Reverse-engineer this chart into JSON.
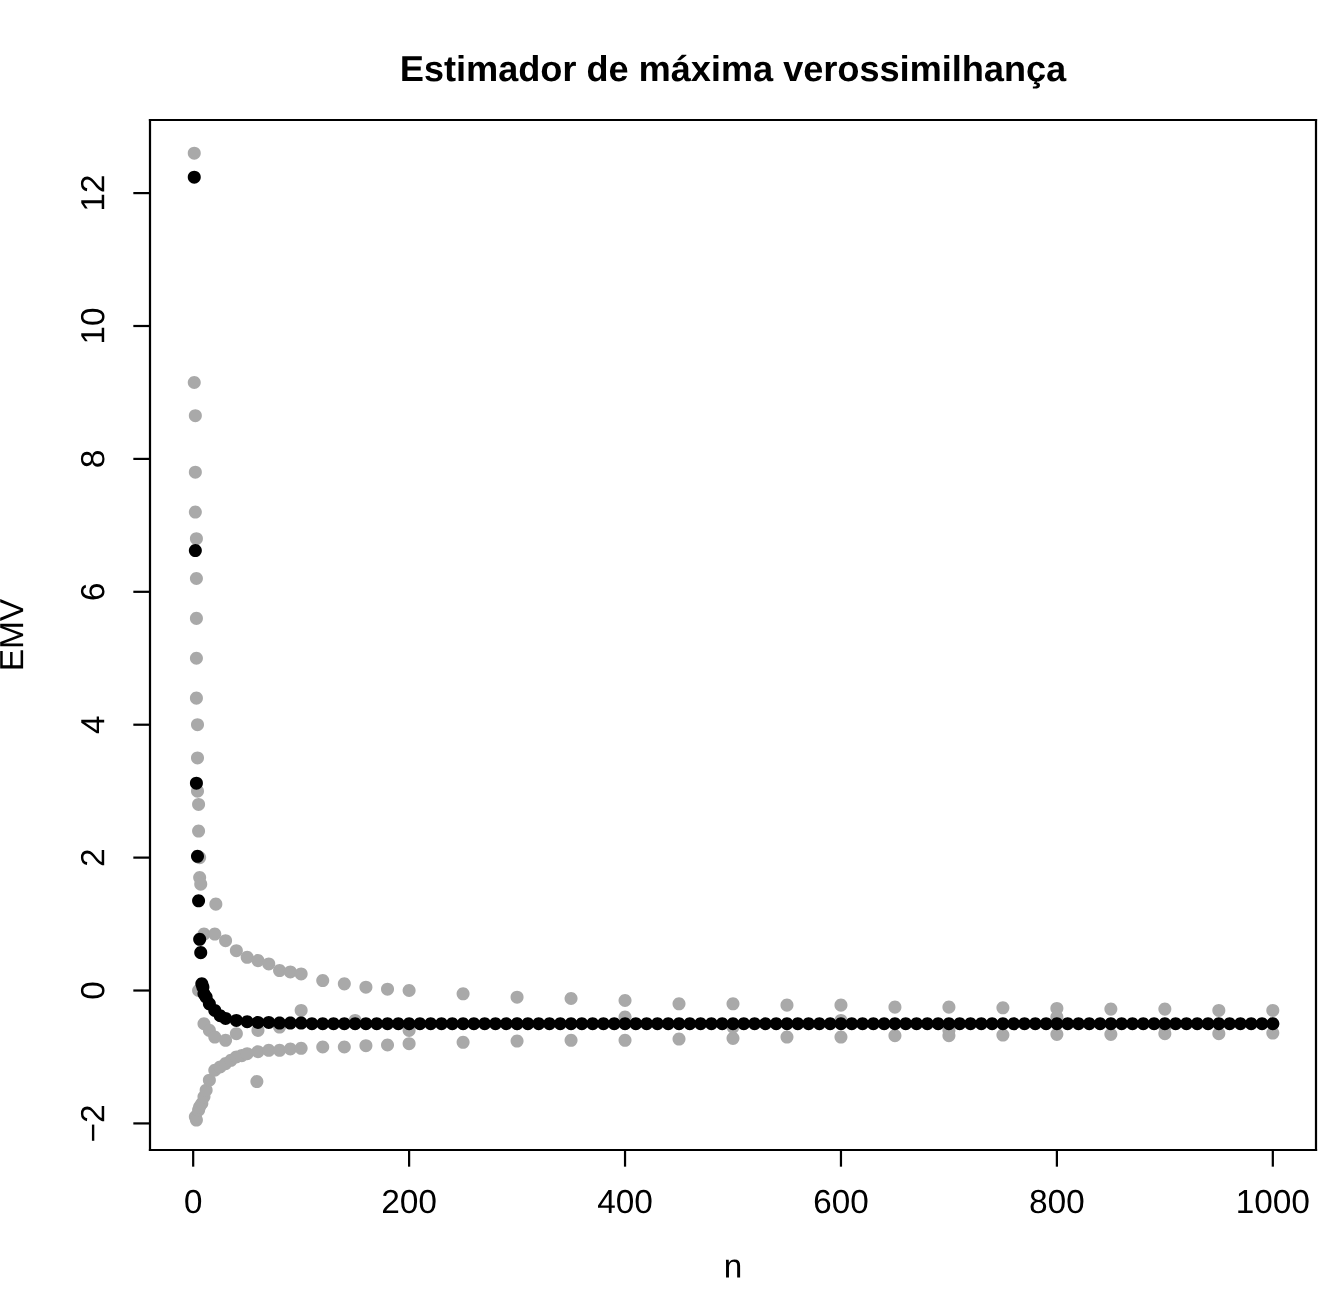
{
  "chart_data": {
    "type": "scatter",
    "title": "Estimador de máxima verossimilhança",
    "xlabel": "n",
    "ylabel": "EMV",
    "xlim": [
      -40,
      1040
    ],
    "ylim": [
      -2.4,
      13.1
    ],
    "xticks": [
      0,
      200,
      400,
      600,
      800,
      1000
    ],
    "yticks": [
      -2,
      0,
      2,
      4,
      6,
      8,
      10,
      12
    ],
    "grid": false,
    "legend": false,
    "marker": "circle",
    "series": [
      {
        "color": "#a9a9a9",
        "x": [
          1,
          1,
          2,
          2,
          2,
          3,
          3,
          3,
          3,
          3,
          4,
          4,
          4,
          5,
          5,
          6,
          6,
          7,
          21,
          2,
          3,
          5,
          6,
          8,
          10,
          12,
          15,
          20,
          25,
          30,
          35,
          40,
          45,
          50,
          60,
          70,
          80,
          90,
          100,
          120,
          140,
          160,
          180,
          200,
          250,
          300,
          350,
          400,
          450,
          500,
          550,
          600,
          650,
          700,
          750,
          800,
          850,
          900,
          950,
          1000,
          59,
          10,
          20,
          30,
          40,
          50,
          60,
          70,
          80,
          90,
          100,
          120,
          140,
          160,
          180,
          200,
          250,
          300,
          350,
          400,
          450,
          500,
          550,
          600,
          650,
          700,
          750,
          800,
          850,
          900,
          950,
          1000,
          5,
          10,
          15,
          20,
          30,
          40,
          60,
          80,
          100,
          150,
          200,
          300,
          400,
          500,
          600,
          700,
          800,
          900,
          1000
        ],
        "values": [
          12.6,
          9.15,
          8.65,
          7.8,
          7.2,
          6.8,
          6.2,
          5.6,
          5.0,
          4.4,
          4.0,
          3.5,
          3.0,
          2.8,
          2.4,
          2.0,
          1.7,
          1.6,
          1.3,
          -1.9,
          -1.95,
          -1.8,
          -1.75,
          -1.7,
          -1.6,
          -1.5,
          -1.35,
          -1.2,
          -1.15,
          -1.1,
          -1.05,
          -1.0,
          -0.98,
          -0.95,
          -0.92,
          -0.9,
          -0.9,
          -0.88,
          -0.87,
          -0.85,
          -0.85,
          -0.83,
          -0.82,
          -0.8,
          -0.78,
          -0.76,
          -0.75,
          -0.75,
          -0.73,
          -0.72,
          -0.7,
          -0.7,
          -0.68,
          -0.68,
          -0.67,
          -0.66,
          -0.66,
          -0.65,
          -0.65,
          -0.64,
          -1.37,
          0.85,
          0.85,
          0.75,
          0.6,
          0.5,
          0.45,
          0.4,
          0.3,
          0.28,
          0.25,
          0.15,
          0.1,
          0.05,
          0.02,
          0.0,
          -0.05,
          -0.1,
          -0.12,
          -0.15,
          -0.2,
          -0.2,
          -0.22,
          -0.22,
          -0.25,
          -0.25,
          -0.26,
          -0.27,
          -0.28,
          -0.28,
          -0.3,
          -0.3,
          0.0,
          -0.5,
          -0.6,
          -0.7,
          -0.75,
          -0.65,
          -0.6,
          -0.55,
          -0.3,
          -0.45,
          -0.6,
          -0.5,
          -0.4,
          -0.55,
          -0.45,
          -0.6,
          -0.4,
          -0.55,
          -0.5
        ]
      },
      {
        "color": "#000000",
        "x": [
          1,
          2,
          3,
          4,
          5,
          6,
          7,
          8,
          9,
          10,
          12,
          15,
          20,
          25,
          30,
          40,
          50,
          60,
          70,
          80,
          90,
          100,
          110,
          120,
          130,
          140,
          150,
          160,
          170,
          180,
          190,
          200,
          210,
          220,
          230,
          240,
          250,
          260,
          270,
          280,
          290,
          300,
          310,
          320,
          330,
          340,
          350,
          360,
          370,
          380,
          390,
          400,
          410,
          420,
          430,
          440,
          450,
          460,
          470,
          480,
          490,
          500,
          510,
          520,
          530,
          540,
          550,
          560,
          570,
          580,
          590,
          600,
          610,
          620,
          630,
          640,
          650,
          660,
          670,
          680,
          690,
          700,
          710,
          720,
          730,
          740,
          750,
          760,
          770,
          780,
          790,
          800,
          810,
          820,
          830,
          840,
          850,
          860,
          870,
          880,
          890,
          900,
          910,
          920,
          930,
          940,
          950,
          960,
          970,
          980,
          990,
          1000
        ],
        "values": [
          12.24,
          6.62,
          3.12,
          2.02,
          1.35,
          0.77,
          0.57,
          0.1,
          0.05,
          -0.05,
          -0.1,
          -0.2,
          -0.3,
          -0.38,
          -0.42,
          -0.45,
          -0.47,
          -0.48,
          -0.48,
          -0.49,
          -0.49,
          -0.49,
          -0.5,
          -0.5,
          -0.5,
          -0.5,
          -0.5,
          -0.5,
          -0.5,
          -0.5,
          -0.5,
          -0.5,
          -0.5,
          -0.5,
          -0.5,
          -0.5,
          -0.5,
          -0.5,
          -0.5,
          -0.5,
          -0.5,
          -0.5,
          -0.5,
          -0.5,
          -0.5,
          -0.5,
          -0.5,
          -0.5,
          -0.5,
          -0.5,
          -0.5,
          -0.5,
          -0.5,
          -0.5,
          -0.5,
          -0.5,
          -0.5,
          -0.5,
          -0.5,
          -0.5,
          -0.5,
          -0.5,
          -0.5,
          -0.5,
          -0.5,
          -0.5,
          -0.5,
          -0.5,
          -0.5,
          -0.5,
          -0.5,
          -0.5,
          -0.5,
          -0.5,
          -0.5,
          -0.5,
          -0.5,
          -0.5,
          -0.5,
          -0.5,
          -0.5,
          -0.5,
          -0.5,
          -0.5,
          -0.5,
          -0.5,
          -0.5,
          -0.5,
          -0.5,
          -0.5,
          -0.5,
          -0.5,
          -0.5,
          -0.5,
          -0.5,
          -0.5,
          -0.5,
          -0.5,
          -0.5,
          -0.5,
          -0.5,
          -0.5,
          -0.5,
          -0.5,
          -0.5,
          -0.5,
          -0.5,
          -0.5,
          -0.5,
          -0.5,
          -0.5,
          -0.5
        ]
      }
    ]
  }
}
